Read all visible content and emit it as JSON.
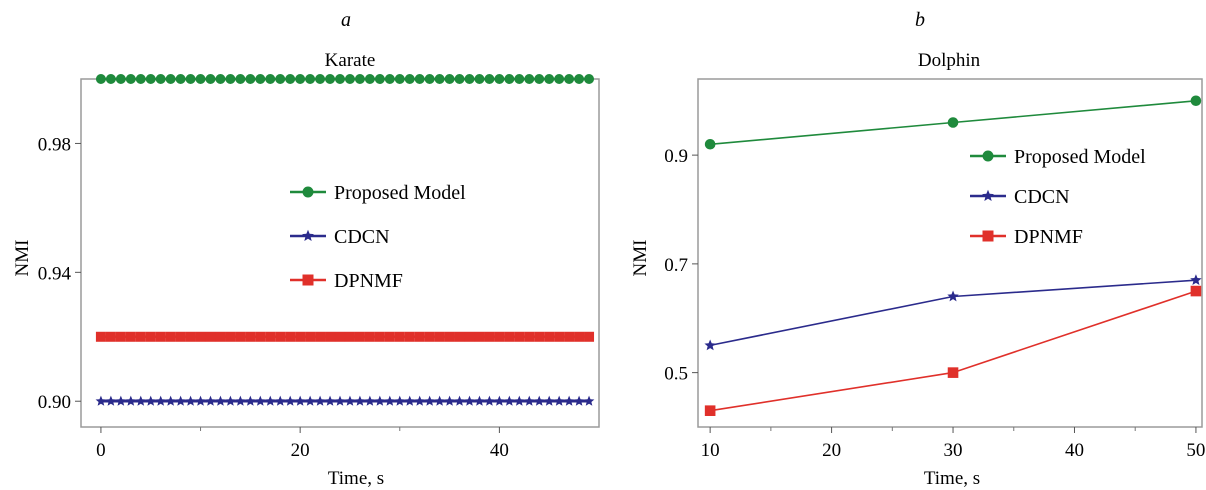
{
  "chart_data": [
    {
      "type": "line",
      "panel_label": "a",
      "title": "Karate",
      "xlabel": "Time, s",
      "ylabel": "NMI",
      "xlim": [
        -2,
        50
      ],
      "ylim": [
        0.892,
        1.0
      ],
      "xticks": [
        "0",
        "20",
        "40"
      ],
      "yticks": [
        "0.90",
        "0.94",
        "0.98"
      ],
      "grid": false,
      "legend_position": "center",
      "x": [
        0,
        1,
        2,
        3,
        4,
        5,
        6,
        7,
        8,
        9,
        10,
        11,
        12,
        13,
        14,
        15,
        16,
        17,
        18,
        19,
        20,
        21,
        22,
        23,
        24,
        25,
        26,
        27,
        28,
        29,
        30,
        31,
        32,
        33,
        34,
        35,
        36,
        37,
        38,
        39,
        40,
        41,
        42,
        43,
        44,
        45,
        46,
        47,
        48,
        49
      ],
      "series": [
        {
          "name": "Proposed Model",
          "color": "#1f8a3c",
          "marker": "circle",
          "values": [
            1.0,
            1.0,
            1.0,
            1.0,
            1.0,
            1.0,
            1.0,
            1.0,
            1.0,
            1.0,
            1.0,
            1.0,
            1.0,
            1.0,
            1.0,
            1.0,
            1.0,
            1.0,
            1.0,
            1.0,
            1.0,
            1.0,
            1.0,
            1.0,
            1.0,
            1.0,
            1.0,
            1.0,
            1.0,
            1.0,
            1.0,
            1.0,
            1.0,
            1.0,
            1.0,
            1.0,
            1.0,
            1.0,
            1.0,
            1.0,
            1.0,
            1.0,
            1.0,
            1.0,
            1.0,
            1.0,
            1.0,
            1.0,
            1.0,
            1.0
          ]
        },
        {
          "name": "CDCN",
          "color": "#2b2b8c",
          "marker": "star",
          "values": [
            0.9,
            0.9,
            0.9,
            0.9,
            0.9,
            0.9,
            0.9,
            0.9,
            0.9,
            0.9,
            0.9,
            0.9,
            0.9,
            0.9,
            0.9,
            0.9,
            0.9,
            0.9,
            0.9,
            0.9,
            0.9,
            0.9,
            0.9,
            0.9,
            0.9,
            0.9,
            0.9,
            0.9,
            0.9,
            0.9,
            0.9,
            0.9,
            0.9,
            0.9,
            0.9,
            0.9,
            0.9,
            0.9,
            0.9,
            0.9,
            0.9,
            0.9,
            0.9,
            0.9,
            0.9,
            0.9,
            0.9,
            0.9,
            0.9,
            0.9
          ]
        },
        {
          "name": "DPNMF",
          "color": "#e0302a",
          "marker": "square",
          "values": [
            0.92,
            0.92,
            0.92,
            0.92,
            0.92,
            0.92,
            0.92,
            0.92,
            0.92,
            0.92,
            0.92,
            0.92,
            0.92,
            0.92,
            0.92,
            0.92,
            0.92,
            0.92,
            0.92,
            0.92,
            0.92,
            0.92,
            0.92,
            0.92,
            0.92,
            0.92,
            0.92,
            0.92,
            0.92,
            0.92,
            0.92,
            0.92,
            0.92,
            0.92,
            0.92,
            0.92,
            0.92,
            0.92,
            0.92,
            0.92,
            0.92,
            0.92,
            0.92,
            0.92,
            0.92,
            0.92,
            0.92,
            0.92,
            0.92,
            0.92
          ]
        }
      ]
    },
    {
      "type": "line",
      "panel_label": "b",
      "title": "Dolphin",
      "xlabel": "Time, s",
      "ylabel": "NMI",
      "xlim": [
        9,
        50.5
      ],
      "ylim": [
        0.4,
        1.04
      ],
      "xticks": [
        "10",
        "20",
        "30",
        "40",
        "50"
      ],
      "yticks": [
        "0.5",
        "0.7",
        "0.9"
      ],
      "grid": false,
      "legend_position": "top-right",
      "x": [
        10,
        30,
        50
      ],
      "series": [
        {
          "name": "Proposed Model",
          "color": "#1f8a3c",
          "marker": "circle",
          "values": [
            0.92,
            0.96,
            1.0
          ]
        },
        {
          "name": "CDCN",
          "color": "#2b2b8c",
          "marker": "star",
          "values": [
            0.55,
            0.64,
            0.67
          ]
        },
        {
          "name": "DPNMF",
          "color": "#e0302a",
          "marker": "square",
          "values": [
            0.43,
            0.5,
            0.65
          ]
        }
      ]
    }
  ]
}
